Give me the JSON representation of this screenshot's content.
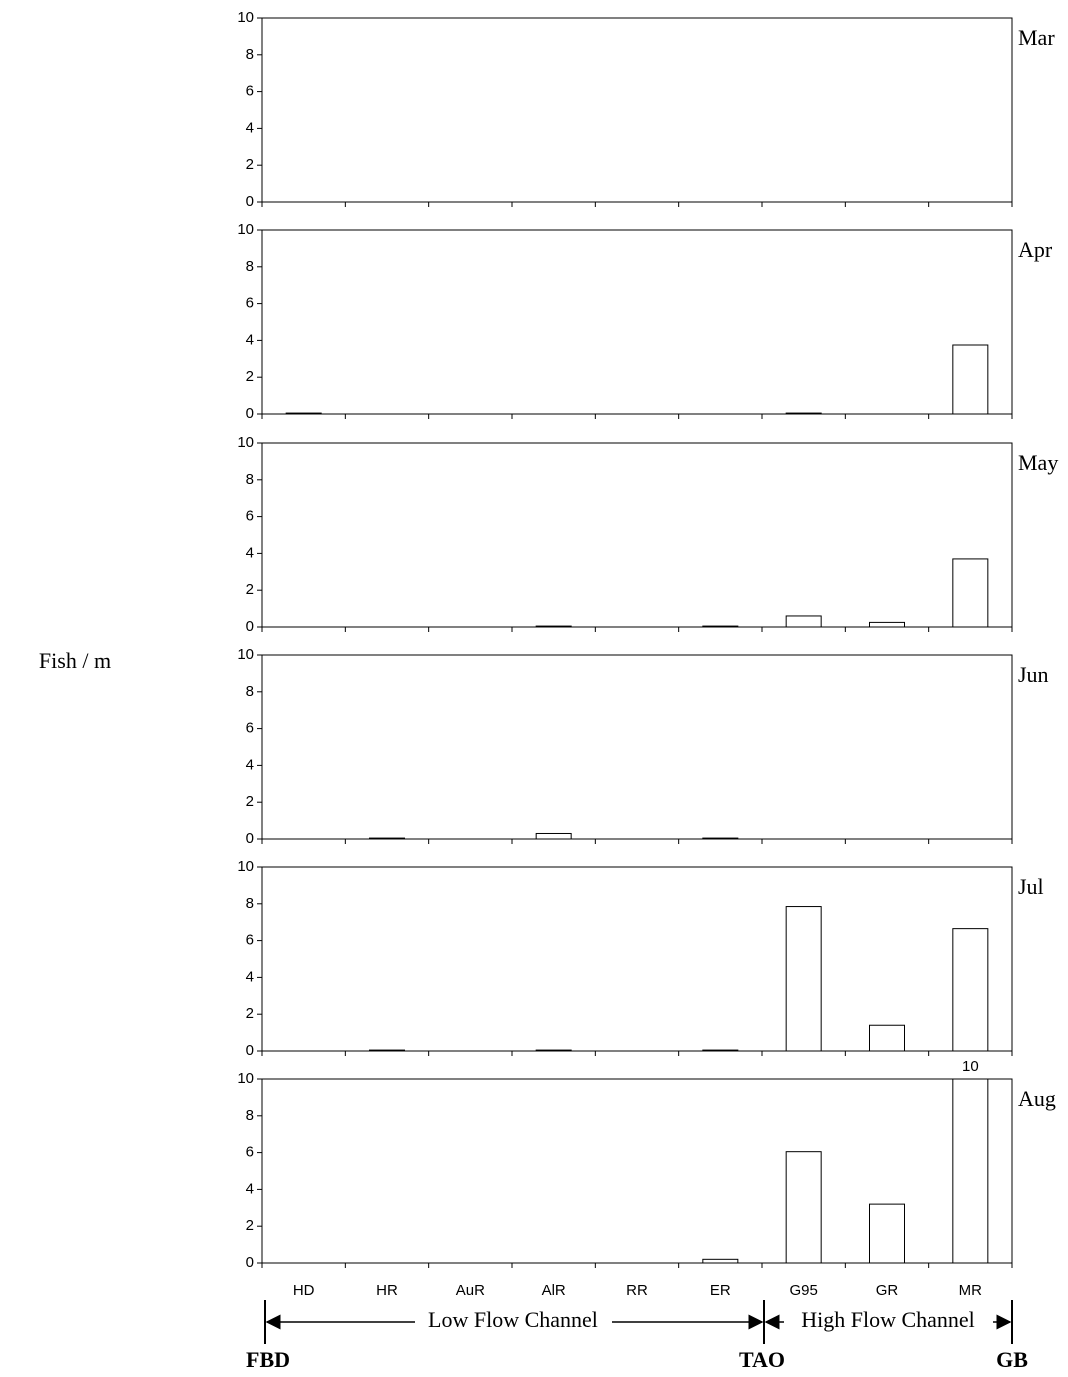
{
  "y_label": "Fish / m",
  "annotations": {
    "low_flow": "Low Flow Channel",
    "high_flow": "High Flow Channel",
    "start": "FBD",
    "middle": "TAO",
    "end": "GB"
  },
  "chart_data": [
    {
      "type": "bar",
      "title": "Mar",
      "values": [
        0,
        0,
        0,
        0,
        0,
        0,
        0,
        0,
        0
      ],
      "ylim": [
        0,
        10
      ],
      "yticks": [
        0,
        2,
        4,
        6,
        8,
        10
      ],
      "color": "#ffffff"
    },
    {
      "type": "bar",
      "title": "Apr",
      "values": [
        0.05,
        0,
        0,
        0,
        0,
        0,
        0.05,
        0,
        3.75
      ],
      "ylim": [
        0,
        10
      ],
      "yticks": [
        0,
        2,
        4,
        6,
        8,
        10
      ],
      "color": "#ffffff"
    },
    {
      "type": "bar",
      "title": "May",
      "values": [
        0,
        0,
        0,
        0.05,
        0,
        0.05,
        0.6,
        0.25,
        3.7
      ],
      "ylim": [
        0,
        10
      ],
      "yticks": [
        0,
        2,
        4,
        6,
        8,
        10
      ],
      "color": "#ffffff"
    },
    {
      "type": "bar",
      "title": "Jun",
      "values": [
        0,
        0.05,
        0,
        0.3,
        0,
        0.05,
        0,
        0,
        0
      ],
      "ylim": [
        0,
        10
      ],
      "yticks": [
        0,
        2,
        4,
        6,
        8,
        10
      ],
      "color": "#ffffff"
    },
    {
      "type": "bar",
      "title": "Jul",
      "values": [
        0,
        0.05,
        0,
        0.05,
        0,
        0.05,
        7.85,
        1.4,
        6.65
      ],
      "ylim": [
        0,
        10
      ],
      "yticks": [
        0,
        2,
        4,
        6,
        8,
        10
      ],
      "color": "#ffffff"
    },
    {
      "type": "bar",
      "title": "Aug",
      "categories": [
        "HD",
        "HR",
        "AuR",
        "AlR",
        "RR",
        "ER",
        "G95",
        "GR",
        "MR"
      ],
      "values": [
        0,
        0,
        0,
        0,
        0,
        0.2,
        6.05,
        3.2,
        10
      ],
      "ylim": [
        0,
        10
      ],
      "yticks": [
        0,
        2,
        4,
        6,
        8,
        10
      ],
      "color": "#ffffff"
    }
  ]
}
